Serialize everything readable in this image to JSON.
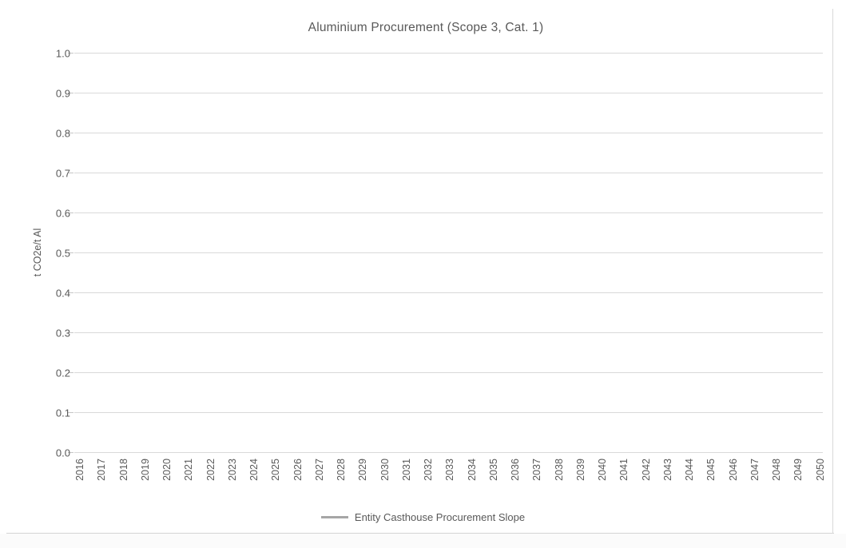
{
  "chart_data": {
    "type": "line",
    "title": "Aluminium Procurement (Scope 3, Cat. 1)",
    "xlabel": "",
    "ylabel": "t CO2e/t Al",
    "x": [
      2016,
      2017,
      2018,
      2019,
      2020,
      2021,
      2022,
      2023,
      2024,
      2025,
      2026,
      2027,
      2028,
      2029,
      2030,
      2031,
      2032,
      2033,
      2034,
      2035,
      2036,
      2037,
      2038,
      2039,
      2040,
      2041,
      2042,
      2043,
      2044,
      2045,
      2046,
      2047,
      2048,
      2049,
      2050
    ],
    "series": [
      {
        "name": "Entity Casthouse Procurement Slope",
        "color": "#a6a6a6",
        "values": []
      }
    ],
    "ylim": [
      0.0,
      1.0
    ],
    "ytick_step": 0.1,
    "yticks": [
      "1.0",
      "0.9",
      "0.8",
      "0.7",
      "0.6",
      "0.5",
      "0.4",
      "0.3",
      "0.2",
      "0.1",
      "0.0"
    ],
    "grid": "horizontal",
    "legend_position": "bottom"
  },
  "legend": {
    "items": [
      {
        "label": "Entity Casthouse Procurement Slope",
        "color": "#a6a6a6"
      }
    ]
  },
  "colors": {
    "grid": "#d9d9d9",
    "tick": "#c6c6c6",
    "text": "#595959",
    "legend_line": "#a6a6a6",
    "frame": "#d9d9d9"
  }
}
